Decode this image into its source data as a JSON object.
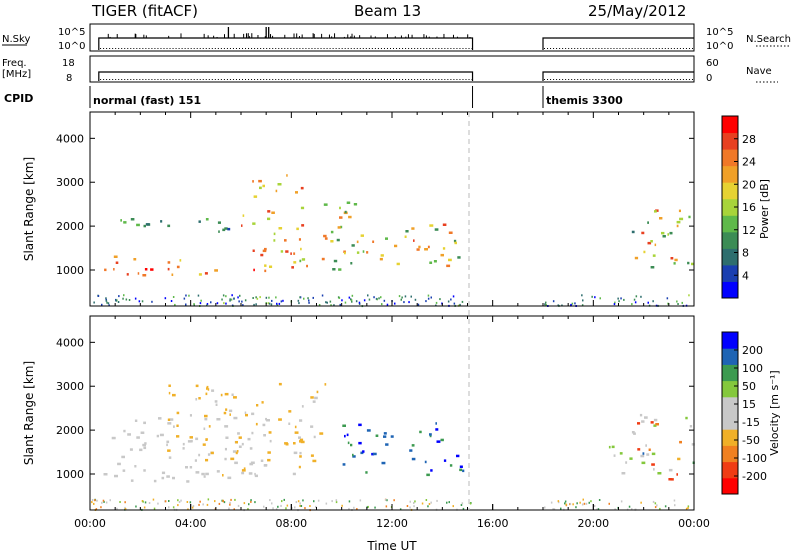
{
  "header": {
    "radar": "TIGER (fitACF)",
    "beam": "Beam 13",
    "date": "25/May/2012"
  },
  "summary": {
    "nsky_label": "N.Sky",
    "nsky_ticks": [
      "10^5",
      "10^0"
    ],
    "nsearch_label": "N.Search",
    "nsearch_ticks": [
      "10^5",
      "10^0"
    ],
    "freq_label_line1": "Freq.",
    "freq_label_line2": "[MHz]",
    "freq_ticks": [
      "18",
      "8"
    ],
    "nave_label": "Nave",
    "nave_ticks": [
      "60",
      "0"
    ],
    "cpid_label": "CPID",
    "cpid_segments": [
      {
        "name": "normal (fast) 151",
        "start_hour": 0,
        "end_hour": 15.2
      },
      {
        "name": "themis 3300",
        "start_hour": 18.0,
        "end_hour": 24
      }
    ]
  },
  "chart_data": [
    {
      "type": "heatmap",
      "panel": "power",
      "ylabel": "Slant Range [km]",
      "xlabel": "",
      "ylim": [
        180,
        4600
      ],
      "yticks": [
        "1000",
        "2000",
        "3000",
        "4000"
      ],
      "colorbar": {
        "label": "Power [dB]",
        "ticks": [
          "28",
          "24",
          "20",
          "16",
          "12",
          "8",
          "4"
        ],
        "range": [
          0,
          30
        ],
        "colors": [
          "#0000ff",
          "#1a3fb0",
          "#2e6e6e",
          "#3c8c55",
          "#5fb94a",
          "#a8d43a",
          "#e6d232",
          "#f0a028",
          "#f07828",
          "#e84020",
          "#ff0000"
        ]
      },
      "data_gap_hours": [
        15.2,
        18.0
      ],
      "features": [
        {
          "name": "main ionospheric band",
          "x_hours": [
            0.5,
            5.0
          ],
          "range_km": [
            850,
            1400
          ],
          "power_db": [
            16,
            30
          ]
        },
        {
          "name": "upper scatter",
          "x_hours": [
            0.5,
            6.0
          ],
          "range_km": [
            1900,
            2300
          ],
          "power_db": [
            4,
            12
          ]
        },
        {
          "name": "rising streaks",
          "x_hours": [
            6.0,
            8.5
          ],
          "range_km": [
            1000,
            3300
          ],
          "power_db": [
            10,
            28
          ]
        },
        {
          "name": "wave band 1",
          "x_hours": [
            8.5,
            11.0
          ],
          "range_km": [
            1000,
            2600
          ],
          "power_db": [
            8,
            24
          ]
        },
        {
          "name": "wave band 2",
          "x_hours": [
            11.0,
            14.8
          ],
          "range_km": [
            1100,
            2100
          ],
          "power_db": [
            8,
            26
          ]
        },
        {
          "name": "evening arc",
          "x_hours": [
            21.5,
            24.0
          ],
          "range_km": [
            900,
            2400
          ],
          "power_db": [
            8,
            28
          ]
        }
      ]
    },
    {
      "type": "heatmap",
      "panel": "velocity",
      "ylabel": "Slant Range [km]",
      "xlabel": "Time UT",
      "ylim": [
        180,
        4600
      ],
      "yticks": [
        "1000",
        "2000",
        "3000",
        "4000"
      ],
      "xticks": [
        "00:00",
        "04:00",
        "08:00",
        "12:00",
        "16:00",
        "20:00",
        "00:00"
      ],
      "xtick_hours": [
        0,
        4,
        8,
        12,
        16,
        20,
        24
      ],
      "colorbar": {
        "label": "Velocity [m s⁻¹]",
        "ticks": [
          "200",
          "100",
          "50",
          "15",
          "-15",
          "-50",
          "-100",
          "-200"
        ],
        "colors": [
          "#ff0000",
          "#f03c14",
          "#f08020",
          "#f0b028",
          "#c8c8c8",
          "#c8c8c8",
          "#84c83c",
          "#3c9a50",
          "#1e64b4",
          "#0000ff"
        ]
      },
      "data_gap_hours": [
        15.2,
        18.0
      ],
      "features": [
        {
          "name": "ground scatter band",
          "x_hours": [
            0.5,
            7.0
          ],
          "range_km": [
            850,
            2300
          ],
          "velocity_ms": [
            -15,
            15
          ]
        },
        {
          "name": "orange ionospheric",
          "x_hours": [
            3.0,
            9.5
          ],
          "range_km": [
            1000,
            3100
          ],
          "velocity_ms": [
            -100,
            -15
          ]
        },
        {
          "name": "blue wave band",
          "x_hours": [
            10.0,
            14.8
          ],
          "range_km": [
            1000,
            2200
          ],
          "velocity_ms": [
            100,
            250
          ]
        },
        {
          "name": "green arc",
          "x_hours": [
            20.5,
            22.5
          ],
          "range_km": [
            950,
            1700
          ],
          "velocity_ms": [
            30,
            60
          ]
        },
        {
          "name": "evening scatter",
          "x_hours": [
            21.5,
            24.0
          ],
          "range_km": [
            900,
            2400
          ],
          "velocity_ms": [
            -200,
            200
          ]
        }
      ]
    }
  ]
}
